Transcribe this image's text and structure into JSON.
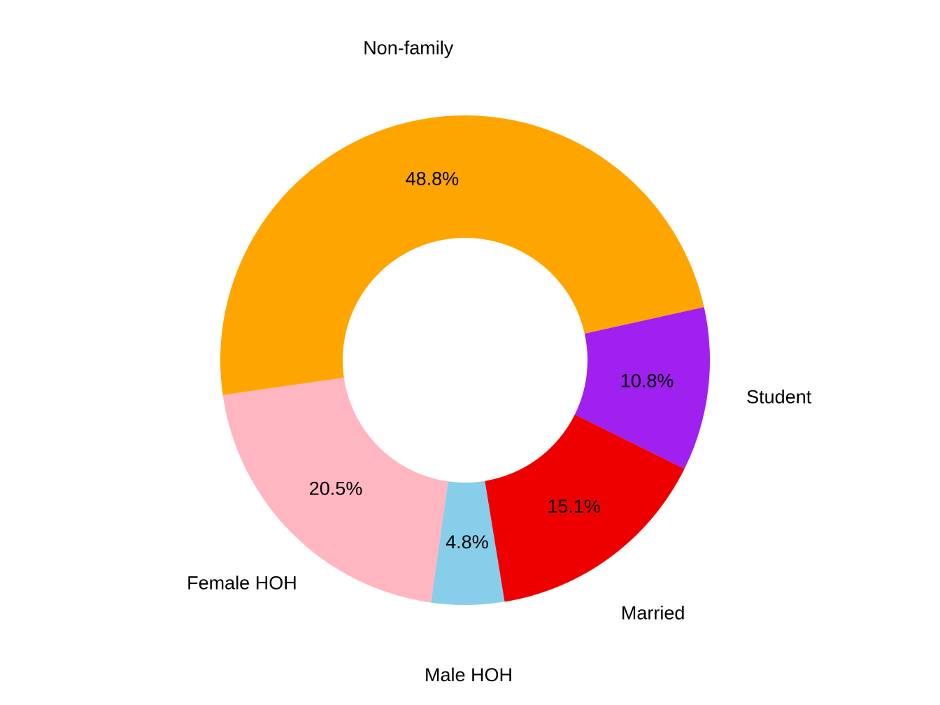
{
  "chart_data": {
    "type": "donut",
    "categories": [
      "Non-family",
      "Student",
      "Married",
      "Male HOH",
      "Female HOH"
    ],
    "values": [
      48.8,
      10.8,
      15.1,
      4.8,
      20.5
    ],
    "value_labels": [
      "48.8%",
      "10.8%",
      "15.1%",
      "4.8%",
      "20.5%"
    ],
    "colors": [
      "#FFA500",
      "#A020F0",
      "#EE0000",
      "#87CEEB",
      "#FFB6C1"
    ]
  }
}
